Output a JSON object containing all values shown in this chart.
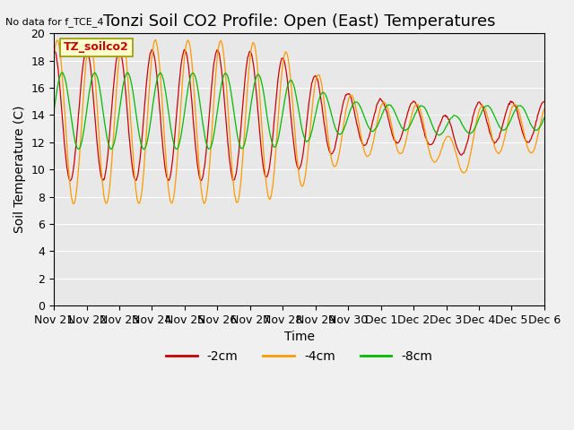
{
  "title": "Tonzi Soil CO2 Profile: Open (East) Temperatures",
  "no_data_text": "No data for f_TCE_4",
  "legend_box_text": "TZ_soilco2",
  "ylabel": "Soil Temperature (C)",
  "xlabel": "Time",
  "ylim": [
    0,
    20
  ],
  "yticks": [
    0,
    2,
    4,
    6,
    8,
    10,
    12,
    14,
    16,
    18,
    20
  ],
  "xtick_labels": [
    "Nov 21",
    "Nov 22",
    "Nov 23",
    "Nov 24",
    "Nov 25",
    "Nov 26",
    "Nov 27",
    "Nov 28",
    "Nov 29",
    "Nov 30",
    "Dec 1",
    "Dec 2",
    "Dec 3",
    "Dec 4",
    "Dec 5",
    "Dec 6"
  ],
  "bg_color": "#e8e8e8",
  "line_colors": {
    "m2cm": "#cc0000",
    "m4cm": "#ff9900",
    "m8cm": "#00bb00"
  },
  "legend_labels": [
    "-2cm",
    "-4cm",
    "-8cm"
  ],
  "title_fontsize": 13,
  "axis_fontsize": 10,
  "tick_fontsize": 9
}
